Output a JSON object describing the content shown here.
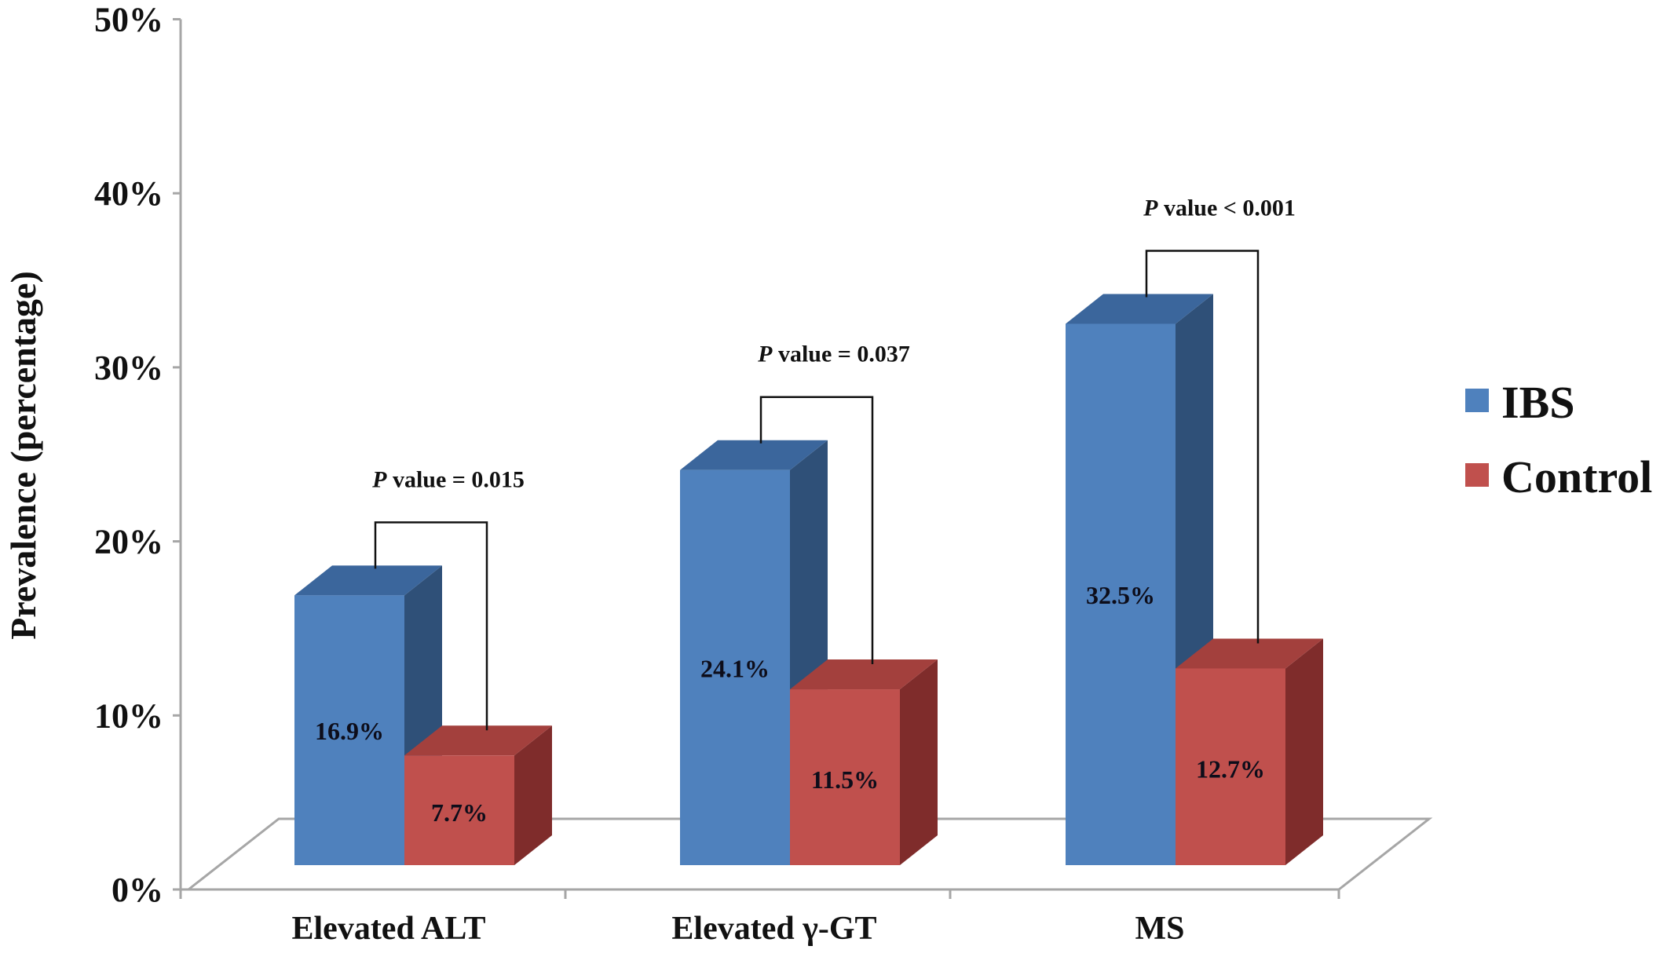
{
  "chart_data": {
    "type": "bar",
    "categories": [
      "Elevated ALT",
      "Elevated γ-GT",
      "MS"
    ],
    "series": [
      {
        "name": "IBS",
        "values": [
          16.9,
          24.1,
          32.5
        ]
      },
      {
        "name": "Control",
        "values": [
          7.7,
          11.5,
          12.7
        ]
      }
    ],
    "data_labels": {
      "IBS": [
        "16.9%",
        "24.1%",
        "32.5%"
      ],
      "Control": [
        "7.7%",
        "11.5%",
        "12.7%"
      ]
    },
    "p_values": [
      {
        "prefix": "P",
        "text": " value = 0.015"
      },
      {
        "prefix": "P",
        "text": " value = 0.037"
      },
      {
        "prefix": "P",
        "text": " value < 0.001"
      }
    ],
    "ylabel": "Prevalence (percentage)",
    "xlabel": "",
    "title": "",
    "ylim": [
      0,
      50
    ],
    "yticks": [
      "0%",
      "10%",
      "20%",
      "30%",
      "40%",
      "50%"
    ],
    "legend_position": "right",
    "style": "3d"
  },
  "colors": {
    "IBS": {
      "front": "#4f81bd",
      "side": "#2f5078",
      "top": "#3b669c"
    },
    "Control": {
      "front": "#c0504d",
      "side": "#7f2c2b",
      "top": "#a3403d"
    },
    "axis": "#a6a6a6",
    "bracket": "#111111"
  }
}
